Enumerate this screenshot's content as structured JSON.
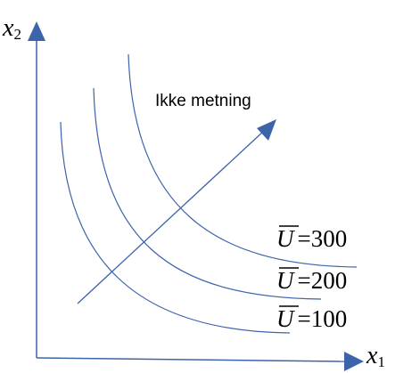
{
  "diagram": {
    "axes": {
      "x_label_base": "x",
      "x_label_sub": "1",
      "y_label_base": "x",
      "y_label_sub": "2"
    },
    "arrow_label": "Ikke metning",
    "curves": [
      {
        "symbol": "U",
        "eq": "=",
        "value": "300"
      },
      {
        "symbol": "U",
        "eq": "=",
        "value": "200"
      },
      {
        "symbol": "U",
        "eq": "=",
        "value": "100"
      }
    ],
    "colors": {
      "axis": "#3c64aa",
      "curve": "#3c64aa",
      "text": "#000000"
    }
  }
}
